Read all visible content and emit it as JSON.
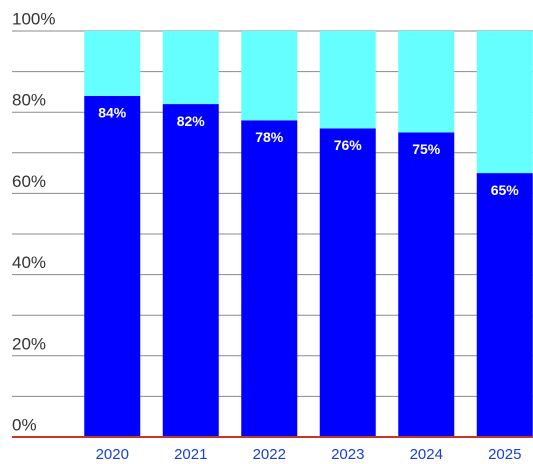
{
  "chart_data": {
    "type": "stacked_bar",
    "categories": [
      "2020",
      "2021",
      "2022",
      "2023",
      "2024",
      "2025"
    ],
    "series": [
      {
        "color": "#0000ff",
        "values": [
          84,
          82,
          78,
          76,
          75,
          65
        ],
        "value_labels": [
          "84%",
          "82%",
          "78%",
          "76%",
          "75%",
          "65%"
        ]
      },
      {
        "color": "#66ffff",
        "values": [
          16,
          18,
          22,
          24,
          25,
          35
        ]
      }
    ],
    "ylim": [
      0,
      100
    ],
    "yticks": [
      {
        "value": 0,
        "label": "0%"
      },
      {
        "value": 20,
        "label": "20%"
      },
      {
        "value": 40,
        "label": "40%"
      },
      {
        "value": 60,
        "label": "60%"
      },
      {
        "value": 80,
        "label": "80%"
      },
      {
        "value": 100,
        "label": "100%"
      }
    ],
    "minor_yticks": [
      10,
      30,
      50,
      70,
      90
    ],
    "grid": true,
    "baseline_color": "#c0392b"
  }
}
